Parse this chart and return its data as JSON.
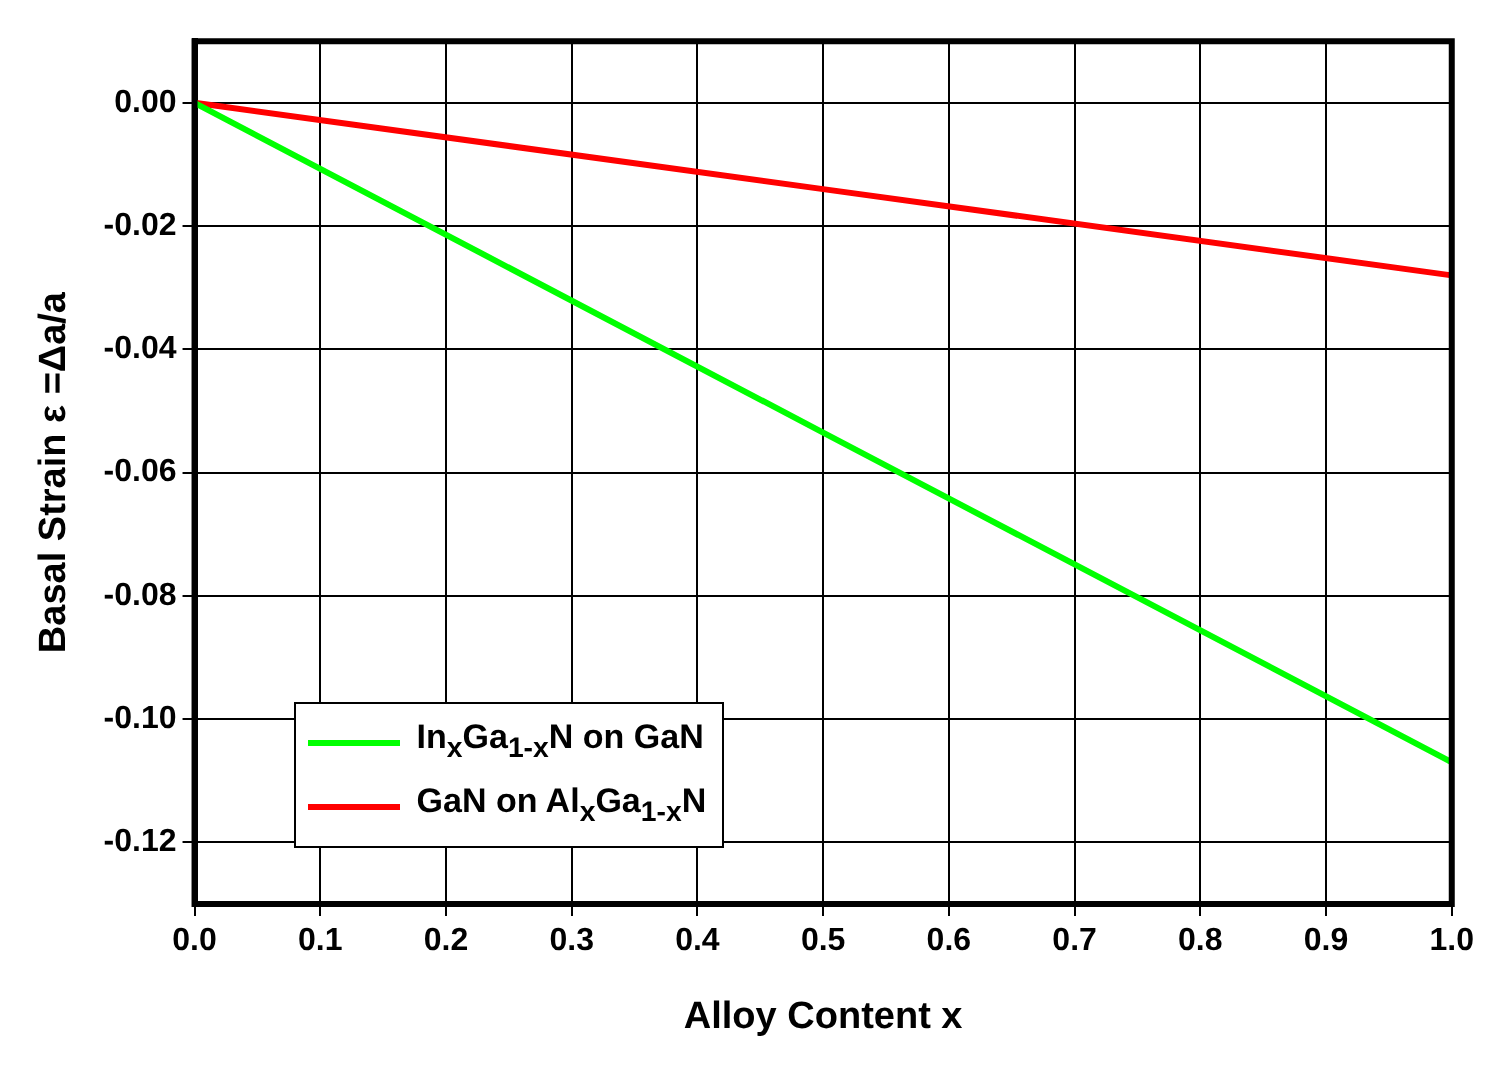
{
  "chart_data": {
    "type": "line",
    "xlabel": "Alloy Content x",
    "ylabel": "Basal Strain ε =Δa/a",
    "x": [
      0,
      0.5,
      1
    ],
    "series": [
      {
        "name": "In$_{x}$Ga$_{1-x}$N on GaN",
        "color": "#00ff00",
        "values": [
          0,
          -0.0535,
          -0.107
        ]
      },
      {
        "name": "GaN on Al$_{x}$Ga$_{1-x}$N",
        "color": "#ff0000",
        "values": [
          0,
          -0.014,
          -0.028
        ]
      }
    ],
    "xlim": [
      0,
      1
    ],
    "ylim": [
      -0.13,
      0.01
    ],
    "xticks": [
      {
        "value": 0,
        "label": "0.0"
      },
      {
        "value": 0.1,
        "label": "0.1"
      },
      {
        "value": 0.2,
        "label": "0.2"
      },
      {
        "value": 0.3,
        "label": "0.3"
      },
      {
        "value": 0.4,
        "label": "0.4"
      },
      {
        "value": 0.5,
        "label": "0.5"
      },
      {
        "value": 0.6,
        "label": "0.6"
      },
      {
        "value": 0.7,
        "label": "0.7"
      },
      {
        "value": 0.8,
        "label": "0.8"
      },
      {
        "value": 0.9,
        "label": "0.9"
      },
      {
        "value": 1,
        "label": "1.0"
      }
    ],
    "yticks": [
      {
        "value": -0.12,
        "label": "-0.12"
      },
      {
        "value": -0.1,
        "label": "-0.10"
      },
      {
        "value": -0.08,
        "label": "-0.08"
      },
      {
        "value": -0.06,
        "label": "-0.06"
      },
      {
        "value": -0.04,
        "label": "-0.04"
      },
      {
        "value": -0.02,
        "label": "-0.02"
      },
      {
        "value": 0,
        "label": "0.00"
      }
    ],
    "grid": true,
    "legend": "bottom left",
    "marker": "none",
    "line_style": "solid"
  }
}
